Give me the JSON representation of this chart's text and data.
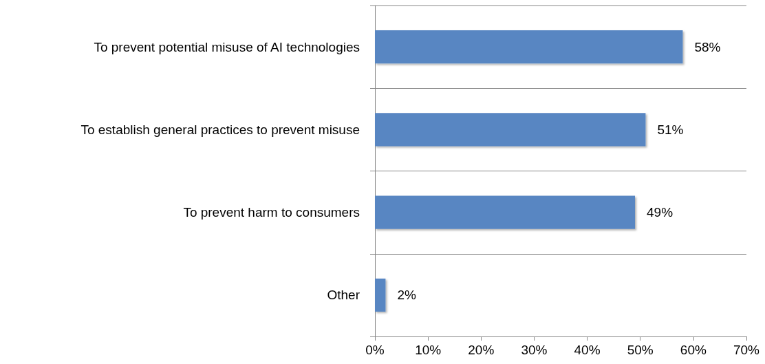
{
  "chart_data": {
    "type": "bar",
    "orientation": "horizontal",
    "categories": [
      "To prevent potential misuse of AI technologies",
      "To establish general practices to prevent misuse",
      "To prevent harm to consumers",
      "Other"
    ],
    "values": [
      58,
      51,
      49,
      2
    ],
    "color": "#5886c2",
    "value_labels": [
      "58%",
      "51%",
      "49%",
      "2%"
    ],
    "xlim": [
      0,
      70
    ],
    "xticks": [
      {
        "value": 0,
        "label": "0%"
      },
      {
        "value": 10,
        "label": "10%"
      },
      {
        "value": 20,
        "label": "20%"
      },
      {
        "value": 30,
        "label": "30%"
      },
      {
        "value": 40,
        "label": "40%"
      },
      {
        "value": 50,
        "label": "50%"
      },
      {
        "value": 60,
        "label": "60%"
      },
      {
        "value": 70,
        "label": "70%"
      }
    ],
    "grid": "y"
  }
}
